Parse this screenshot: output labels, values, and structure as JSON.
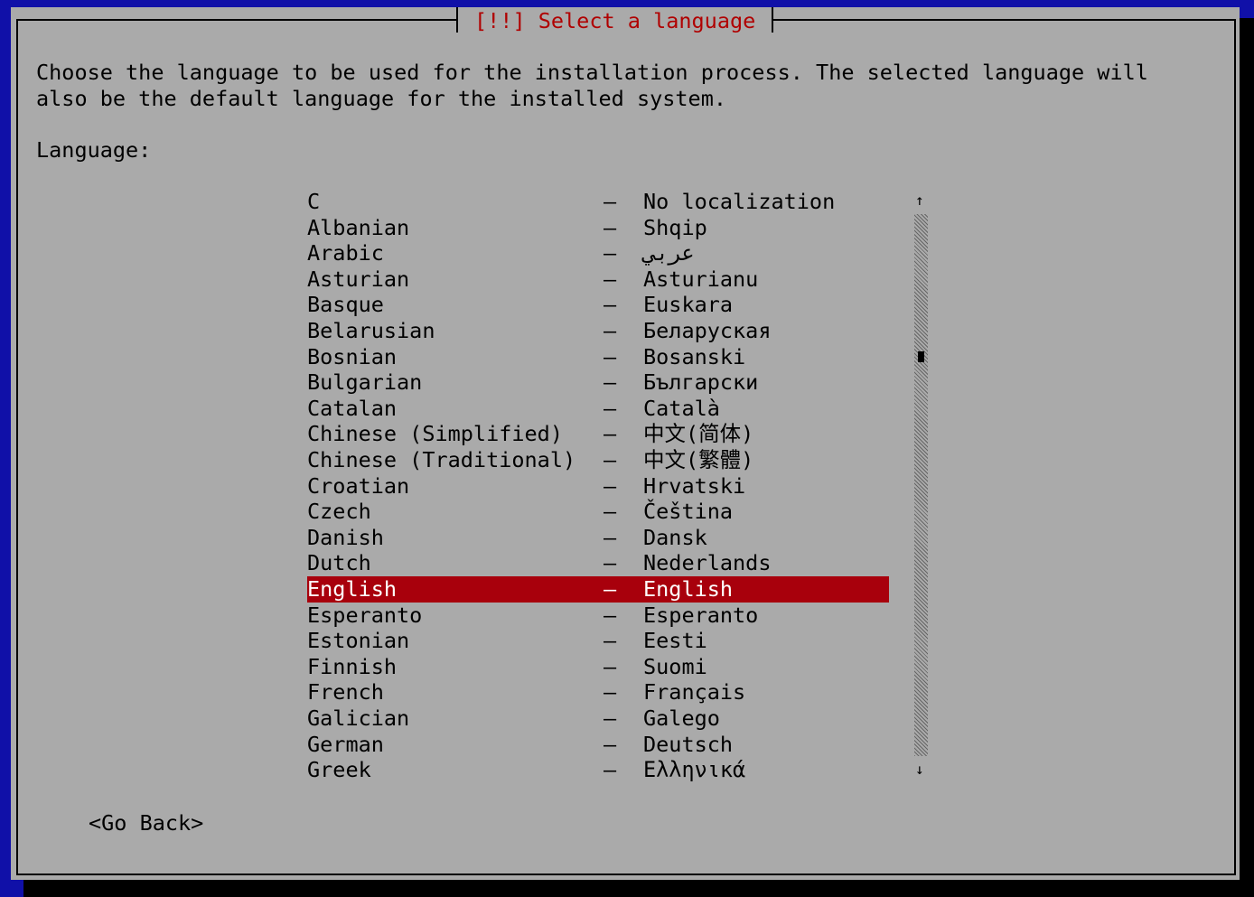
{
  "dialog": {
    "title": "[!!] Select a language",
    "description": [
      "Choose the language to be used for the installation process. The selected language will",
      "also be the default language for the installed system."
    ],
    "label": "Language:",
    "separator": "–",
    "selected": 15,
    "rows": [
      {
        "name": "C",
        "native": "No localization"
      },
      {
        "name": "Albanian",
        "native": "Shqip"
      },
      {
        "name": "Arabic",
        "native": "عربي"
      },
      {
        "name": "Asturian",
        "native": "Asturianu"
      },
      {
        "name": "Basque",
        "native": "Euskara"
      },
      {
        "name": "Belarusian",
        "native": "Беларуская"
      },
      {
        "name": "Bosnian",
        "native": "Bosanski"
      },
      {
        "name": "Bulgarian",
        "native": "Български"
      },
      {
        "name": "Catalan",
        "native": "Català"
      },
      {
        "name": "Chinese (Simplified)",
        "native": "中文(简体)"
      },
      {
        "name": "Chinese (Traditional)",
        "native": "中文(繁體)"
      },
      {
        "name": "Croatian",
        "native": "Hrvatski"
      },
      {
        "name": "Czech",
        "native": "Čeština"
      },
      {
        "name": "Danish",
        "native": "Dansk"
      },
      {
        "name": "Dutch",
        "native": "Nederlands"
      },
      {
        "name": "English",
        "native": "English"
      },
      {
        "name": "Esperanto",
        "native": "Esperanto"
      },
      {
        "name": "Estonian",
        "native": "Eesti"
      },
      {
        "name": "Finnish",
        "native": "Suomi"
      },
      {
        "name": "French",
        "native": "Français"
      },
      {
        "name": "Galician",
        "native": "Galego"
      },
      {
        "name": "German",
        "native": "Deutsch"
      },
      {
        "name": "Greek",
        "native": "Ελληνικά"
      }
    ],
    "back_button": "<Go Back>"
  }
}
